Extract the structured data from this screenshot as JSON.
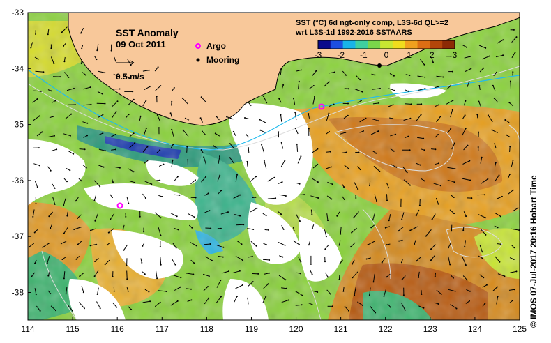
{
  "map": {
    "title": "SST Anomaly",
    "date": "09 Oct 2011",
    "scale_label": "0.5 m/s",
    "legend": {
      "argo": "Argo",
      "mooring": "Mooring"
    },
    "colorbar": {
      "title_line1": "SST (°C) 6d ngt-only comp, L3S-6d QL>=2",
      "title_line2": "wrt L3S-1d 1992-2016 SSTAARS",
      "ticks": [
        "-3",
        "-2",
        "-1",
        "0",
        "1",
        "2",
        "3"
      ],
      "colors": [
        "#0a0a8c",
        "#1d4fe0",
        "#19b4e8",
        "#3fd0a0",
        "#7ad64a",
        "#c8e632",
        "#f0dc1e",
        "#f0a01e",
        "#dc6e14",
        "#b4460a",
        "#8c2a05"
      ]
    },
    "colors": {
      "land": "#f8c89a",
      "no_data": "#ffffff",
      "argo_marker": "#ff00ff",
      "mooring_marker": "#000000",
      "contour": "#dddddd",
      "current_line": "#22bbee"
    },
    "lon_ticks": [
      "114",
      "115",
      "116",
      "117",
      "118",
      "119",
      "120",
      "121",
      "122",
      "123",
      "124",
      "125"
    ],
    "lat_ticks": [
      "-33",
      "-34",
      "-35",
      "-36",
      "-37",
      "-38"
    ],
    "credit": "© IMOS 07-Jul-2017 20:16 Hobart Time"
  }
}
